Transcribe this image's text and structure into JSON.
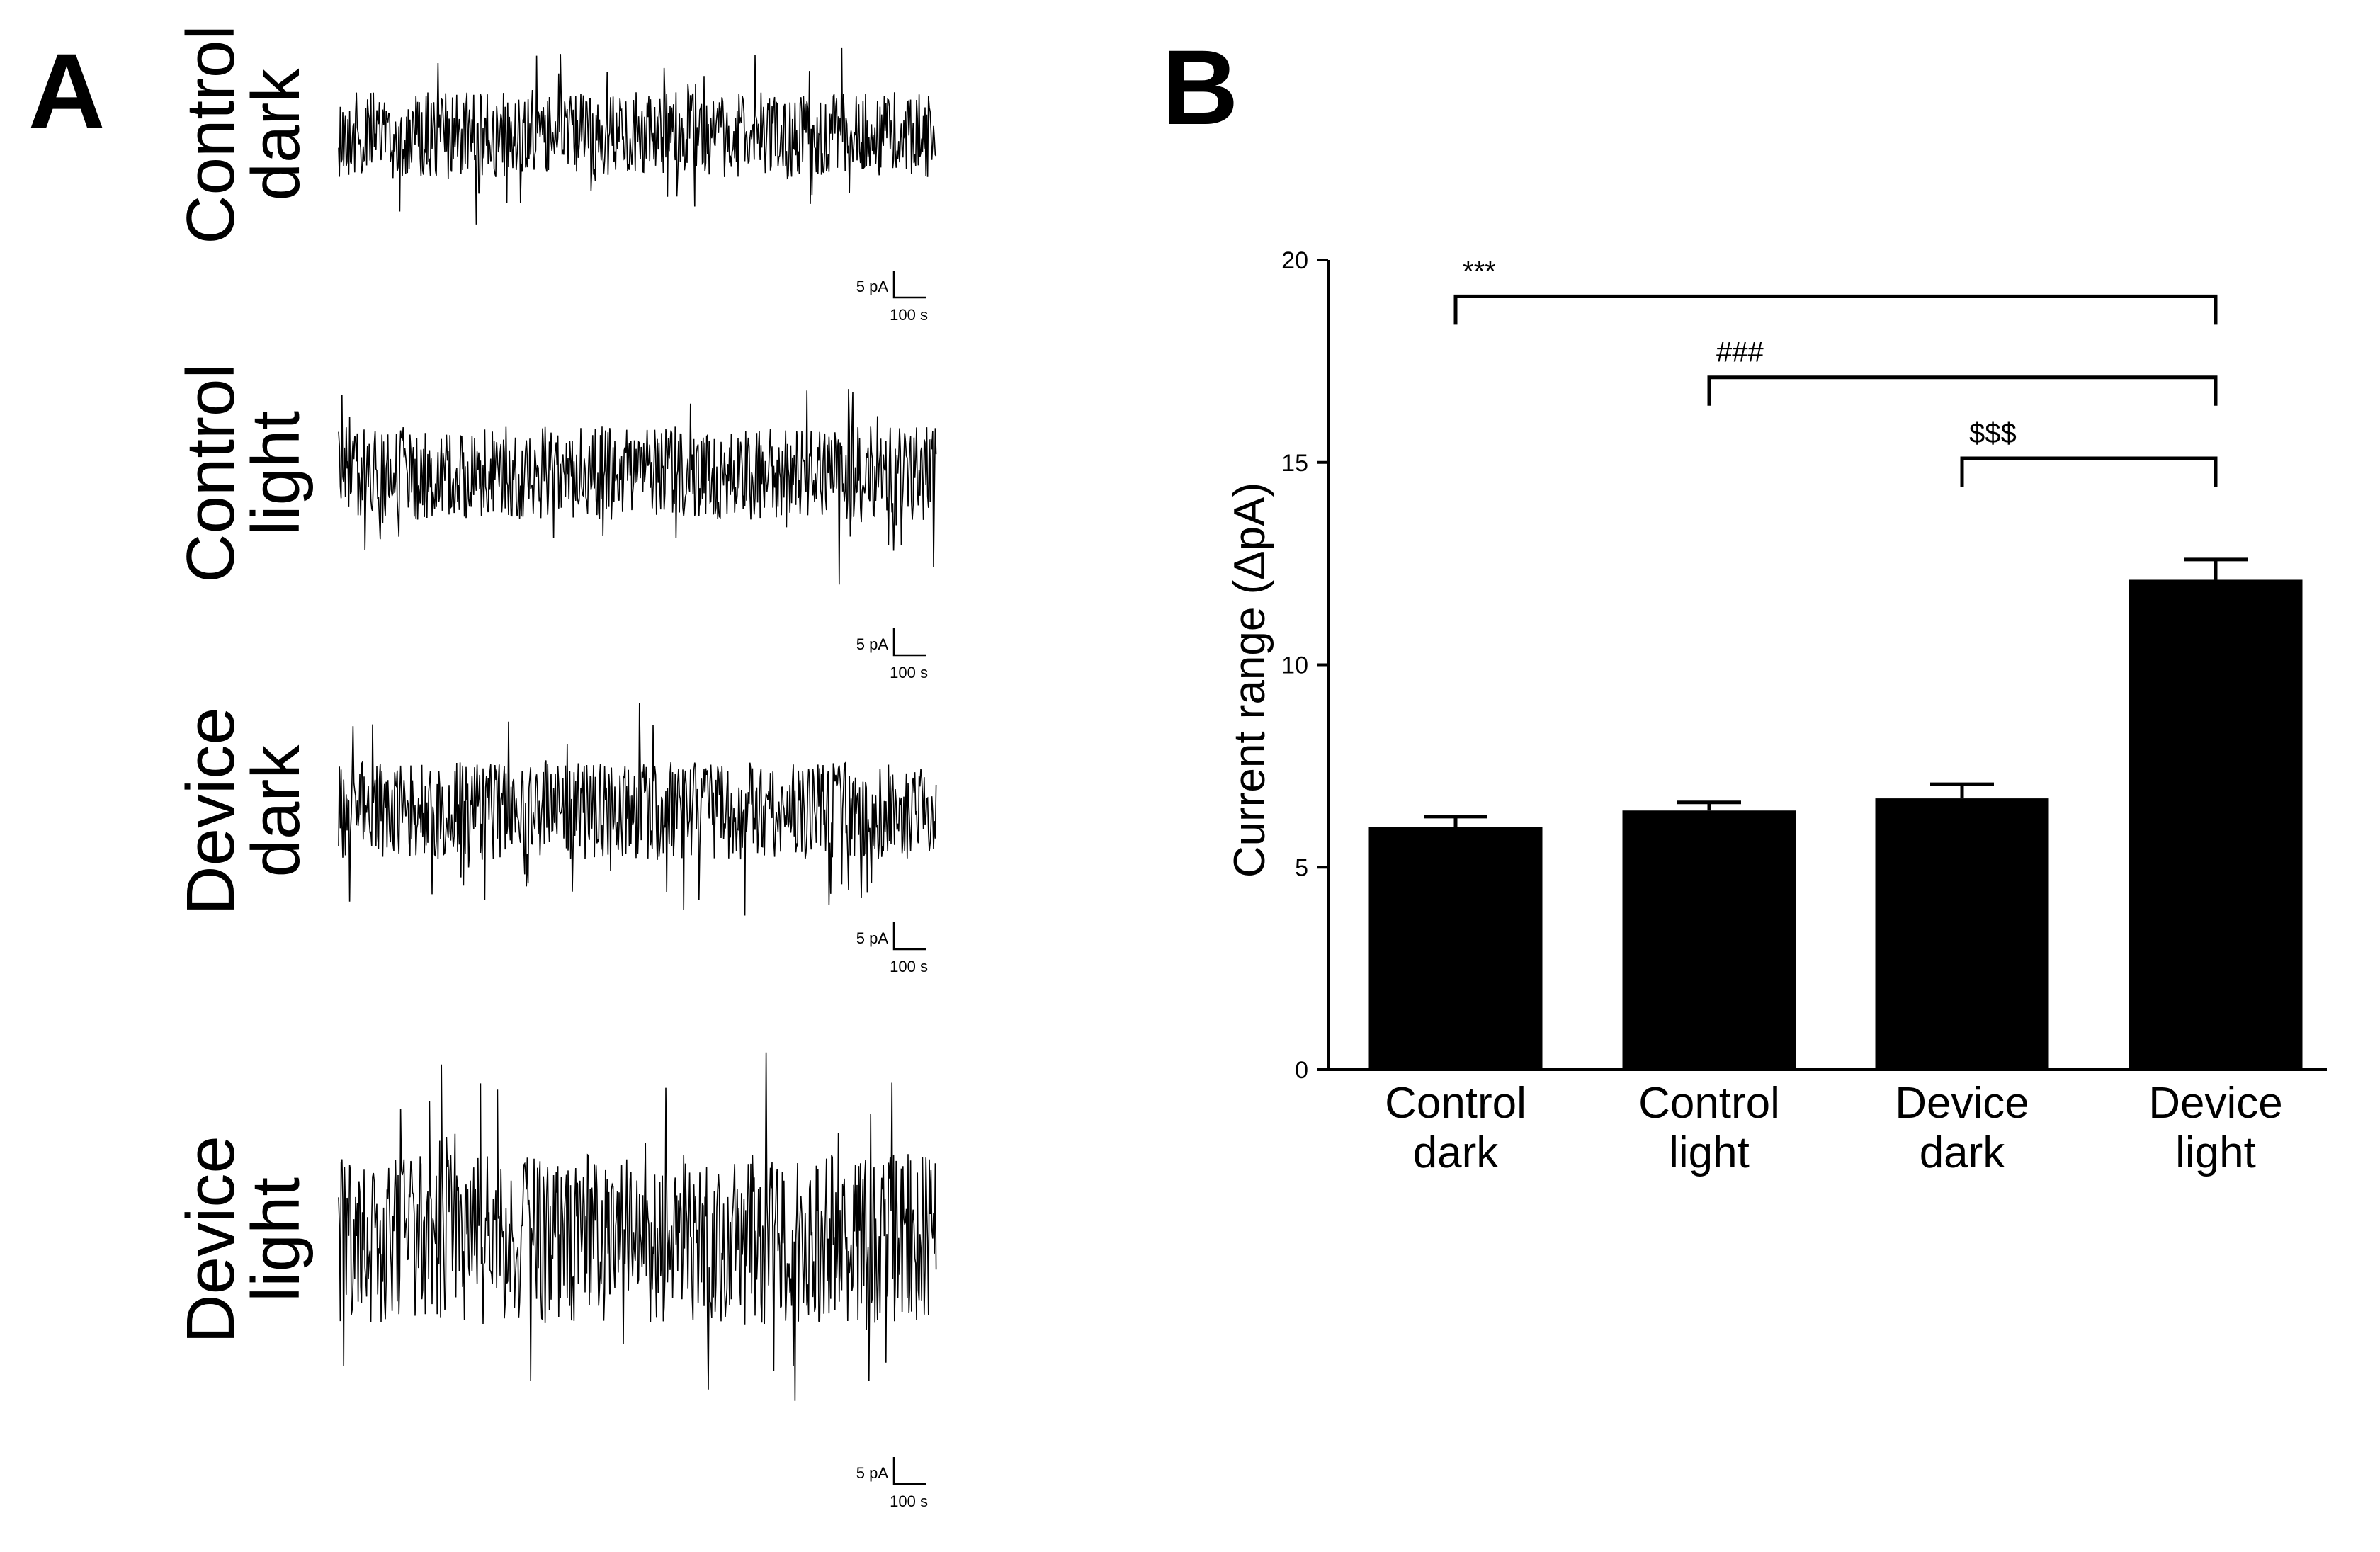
{
  "panel_a": {
    "letter": "A",
    "traces": [
      {
        "label_line1": "Control",
        "label_line2": "dark",
        "scale_y": "5 pA",
        "scale_x": "100 s",
        "amplitude": 1.0
      },
      {
        "label_line1": "Control",
        "label_line2": "light",
        "scale_y": "5 pA",
        "scale_x": "100 s",
        "amplitude": 1.1
      },
      {
        "label_line1": "Device",
        "label_line2": "dark",
        "scale_y": "5 pA",
        "scale_x": "100 s",
        "amplitude": 1.15
      },
      {
        "label_line1": "Device",
        "label_line2": "light",
        "scale_y": "5 pA",
        "scale_x": "100 s",
        "amplitude": 2.0
      }
    ]
  },
  "panel_b": {
    "letter": "B"
  },
  "chart_data": {
    "type": "bar",
    "categories": [
      [
        "Control",
        "dark"
      ],
      [
        "Control",
        "light"
      ],
      [
        "Device",
        "dark"
      ],
      [
        "Device",
        "light"
      ]
    ],
    "values": [
      6.0,
      6.4,
      6.7,
      12.1
    ],
    "errors": [
      0.25,
      0.2,
      0.35,
      0.5
    ],
    "title": "",
    "xlabel": "",
    "ylabel": "Current range (ΔpA)",
    "ylim": [
      0,
      20
    ],
    "yticks": [
      0,
      5,
      10,
      15,
      20
    ],
    "bar_color": "#000000",
    "grid": false,
    "significance": [
      {
        "from": 0,
        "to": 3,
        "label": "***",
        "level": 19.1
      },
      {
        "from": 1,
        "to": 3,
        "label": "###",
        "level": 17.1
      },
      {
        "from": 2,
        "to": 3,
        "label": "$$$",
        "level": 15.1
      }
    ]
  }
}
